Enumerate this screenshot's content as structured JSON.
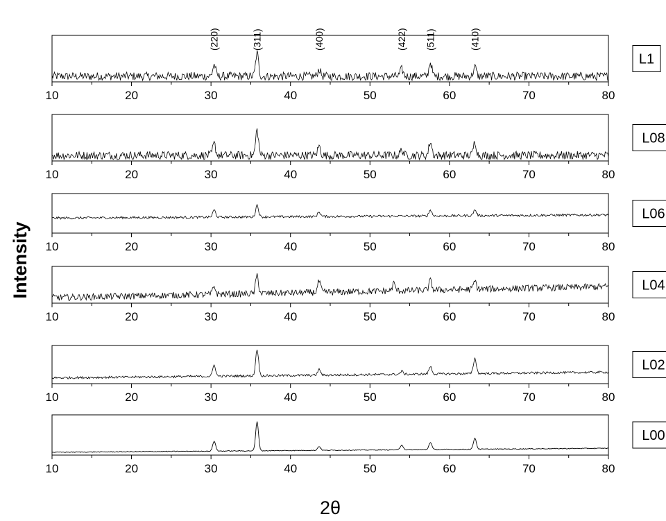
{
  "chart_data": {
    "type": "line",
    "layout": "stacked-panels",
    "xlabel": "2θ",
    "ylabel": "Intensity",
    "xlim": [
      10,
      80
    ],
    "x_ticks": [
      10,
      20,
      30,
      40,
      50,
      60,
      70,
      80
    ],
    "peak_labels": [
      {
        "label": "(220)",
        "x": 30.4
      },
      {
        "label": "(311)",
        "x": 35.8
      },
      {
        "label": "(400)",
        "x": 43.6
      },
      {
        "label": "(422)",
        "x": 54.0
      },
      {
        "label": "(511)",
        "x": 57.6
      },
      {
        "label": "(410)",
        "x": 63.2
      }
    ],
    "series": [
      {
        "name": "L1",
        "baseline": 0.12,
        "slope": 0.0,
        "noise": 0.09,
        "peaks": [
          [
            30.4,
            0.25
          ],
          [
            35.8,
            0.5
          ],
          [
            43.6,
            0.15
          ],
          [
            54.0,
            0.15
          ],
          [
            57.6,
            0.3
          ],
          [
            63.2,
            0.2
          ]
        ]
      },
      {
        "name": "L08",
        "baseline": 0.12,
        "slope": 0.0,
        "noise": 0.09,
        "peaks": [
          [
            30.4,
            0.25
          ],
          [
            35.8,
            0.55
          ],
          [
            43.6,
            0.2
          ],
          [
            54.0,
            0.12
          ],
          [
            57.6,
            0.3
          ],
          [
            63.2,
            0.3
          ]
        ]
      },
      {
        "name": "L06",
        "baseline": 0.38,
        "slope": 0.08,
        "noise": 0.03,
        "peaks": [
          [
            30.4,
            0.18
          ],
          [
            35.8,
            0.3
          ],
          [
            43.6,
            0.12
          ],
          [
            57.6,
            0.15
          ],
          [
            63.2,
            0.15
          ]
        ]
      },
      {
        "name": "L04",
        "baseline": 0.15,
        "slope": 0.3,
        "noise": 0.09,
        "peaks": [
          [
            30.4,
            0.22
          ],
          [
            35.8,
            0.5
          ],
          [
            43.6,
            0.3
          ],
          [
            53.0,
            0.2
          ],
          [
            57.6,
            0.25
          ],
          [
            63.2,
            0.22
          ]
        ]
      },
      {
        "name": "L02",
        "baseline": 0.15,
        "slope": 0.15,
        "noise": 0.03,
        "peaks": [
          [
            30.4,
            0.3
          ],
          [
            35.8,
            0.7
          ],
          [
            43.6,
            0.15
          ],
          [
            54.0,
            0.08
          ],
          [
            57.6,
            0.2
          ],
          [
            63.2,
            0.4
          ]
        ]
      },
      {
        "name": "L00",
        "baseline": 0.07,
        "slope": 0.1,
        "noise": 0.01,
        "peaks": [
          [
            30.4,
            0.25
          ],
          [
            35.8,
            0.72
          ],
          [
            43.6,
            0.1
          ],
          [
            54.0,
            0.12
          ],
          [
            57.6,
            0.18
          ],
          [
            63.2,
            0.28
          ]
        ]
      }
    ]
  }
}
